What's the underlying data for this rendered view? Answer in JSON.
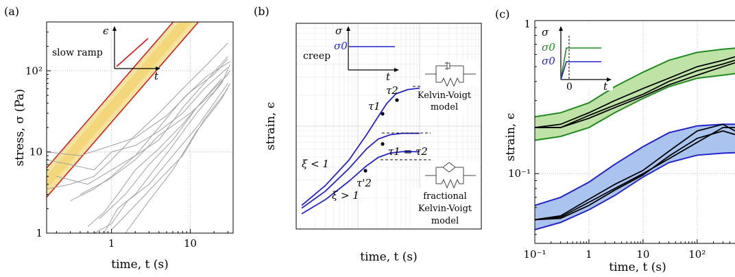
{
  "chart_data": [
    {
      "panel_label": "(a)",
      "type": "line",
      "xlabel": "time, t (s)",
      "ylabel": "stress, σ (Pa)",
      "x_scale": "log",
      "y_scale": "log",
      "xlim": [
        0.15,
        35
      ],
      "ylim": [
        1,
        400
      ],
      "x_ticks": [
        "1",
        "10"
      ],
      "y_ticks": [
        "1",
        "10",
        "10²"
      ],
      "grid": true,
      "inset": {
        "ylabel": "ϵ",
        "xlabel": "t",
        "caption": "slow ramp"
      },
      "colors": {
        "data": "#a0a0a0",
        "band_fill": "#f3d77a",
        "band_edge": "#cc2222"
      },
      "band": {
        "center_at_0_15": 4.2,
        "slope": 1.12,
        "width_factor": 1.23
      },
      "series": [
        {
          "x": [
            0.15,
            0.3,
            0.6,
            1,
            2,
            4,
            8,
            15,
            30
          ],
          "y": [
            8,
            7,
            6,
            10,
            12,
            18,
            30,
            60,
            110
          ]
        },
        {
          "x": [
            0.15,
            0.3,
            0.6,
            1,
            2,
            4,
            8,
            15,
            30
          ],
          "y": [
            3.5,
            4,
            5,
            8,
            16,
            30,
            60,
            110,
            220
          ]
        },
        {
          "x": [
            0.5,
            0.8,
            1.2,
            2,
            4,
            8,
            15,
            30
          ],
          "y": [
            1.2,
            1.8,
            3,
            6,
            11,
            22,
            45,
            90
          ]
        },
        {
          "x": [
            0.6,
            1,
            1.6,
            3,
            6,
            12,
            20,
            30
          ],
          "y": [
            1,
            1.3,
            2.5,
            4,
            9,
            20,
            40,
            70
          ]
        },
        {
          "x": [
            0.8,
            1.2,
            2,
            3,
            6,
            12,
            25,
            32
          ],
          "y": [
            1,
            2,
            3,
            5,
            12,
            30,
            70,
            120
          ]
        },
        {
          "x": [
            1,
            2,
            4,
            8,
            15,
            30
          ],
          "y": [
            1.1,
            2.2,
            4.5,
            9,
            25,
            60
          ]
        },
        {
          "x": [
            0.3,
            0.6,
            1,
            2,
            4,
            8,
            15,
            30
          ],
          "y": [
            2.5,
            3.5,
            5,
            9,
            14,
            35,
            70,
            150
          ]
        },
        {
          "x": [
            0.15,
            0.4,
            1,
            2,
            5,
            10,
            20,
            30
          ],
          "y": [
            10,
            9,
            12,
            15,
            28,
            55,
            90,
            140
          ]
        },
        {
          "x": [
            0.2,
            0.5,
            1,
            2,
            4,
            8,
            16,
            32
          ],
          "y": [
            5,
            4,
            6,
            9,
            20,
            45,
            85,
            130
          ]
        },
        {
          "x": [
            0.7,
            1.5,
            3,
            6,
            12,
            25
          ],
          "y": [
            1.5,
            3,
            7,
            14,
            35,
            80
          ]
        },
        {
          "x": [
            0.4,
            0.9,
            2,
            4,
            10,
            20,
            32
          ],
          "y": [
            3,
            4.5,
            8,
            16,
            30,
            55,
            100
          ]
        },
        {
          "x": [
            1.5,
            3,
            6,
            12,
            25,
            32
          ],
          "y": [
            1,
            2.5,
            6,
            18,
            45,
            70
          ]
        }
      ]
    },
    {
      "panel_label": "(b)",
      "type": "line",
      "xlabel": "time, t (s)",
      "ylabel": "strain, ϵ",
      "x_scale": "log",
      "y_scale": "log",
      "grid": true,
      "inset": {
        "ylabel": "σ",
        "level_label": "σ0",
        "xlabel": "t",
        "caption": "creep"
      },
      "model_labels": {
        "kelvin_voigt": [
          "Kelvin-Voigt",
          "model"
        ],
        "fractional": [
          "fractional",
          "Kelvin-Voigt",
          "model"
        ]
      },
      "annotations": {
        "tau1": "τ1",
        "tau2": "τ2",
        "tau_equal": "τ1 = τ2",
        "tau2_prime": "τ'2",
        "xi_less": "ξ < 1",
        "xi_greater": "ξ > 1"
      },
      "colors": {
        "curves": "#2222cc"
      },
      "curves": [
        {
          "label": "ξ < 1",
          "x": [
            0.0,
            0.2,
            0.4,
            0.55,
            0.65,
            0.72,
            0.8,
            0.9,
            1.0
          ],
          "y": [
            0.08,
            0.22,
            0.4,
            0.58,
            0.71,
            0.8,
            0.87,
            0.9,
            0.91
          ]
        },
        {
          "label": "τ1 = τ2",
          "x": [
            0.0,
            0.2,
            0.4,
            0.55,
            0.65,
            0.75,
            0.85,
            1.0
          ],
          "y": [
            0.06,
            0.18,
            0.34,
            0.48,
            0.55,
            0.58,
            0.59,
            0.59
          ]
        },
        {
          "label": "ξ > 1",
          "x": [
            0.0,
            0.2,
            0.4,
            0.55,
            0.65,
            0.75,
            0.85,
            1.0
          ],
          "y": [
            0.02,
            0.12,
            0.25,
            0.36,
            0.42,
            0.45,
            0.46,
            0.46
          ]
        }
      ]
    },
    {
      "panel_label": "(c)",
      "type": "line",
      "xlabel": "time, t (s)",
      "ylabel": "strain, ϵ",
      "x_scale": "log",
      "y_scale": "log",
      "xlim": [
        0.1,
        500
      ],
      "ylim": [
        0.035,
        1
      ],
      "x_ticks": [
        "10⁻¹",
        "1",
        "10",
        "10²"
      ],
      "y_ticks": [
        "10⁻¹",
        "1"
      ],
      "grid": true,
      "inset": {
        "ylabel": "σ",
        "green_label": "σ0",
        "blue_label": "σ0",
        "xlabel": "t",
        "origin": "0"
      },
      "colors": {
        "green_edge": "#1f8a1f",
        "green_fill": "#bfe3a6",
        "blue_edge": "#2222cc",
        "blue_fill": "#a9c4ee",
        "data": "#000000"
      },
      "green_band": {
        "x": [
          0.1,
          0.3,
          1,
          3,
          10,
          30,
          100,
          300,
          500
        ],
        "upper": [
          0.235,
          0.25,
          0.29,
          0.37,
          0.46,
          0.55,
          0.62,
          0.65,
          0.66
        ],
        "lower": [
          0.165,
          0.175,
          0.2,
          0.25,
          0.31,
          0.37,
          0.42,
          0.44,
          0.45
        ]
      },
      "blue_band": {
        "x": [
          0.1,
          0.3,
          1,
          3,
          10,
          30,
          100,
          300,
          500
        ],
        "upper": [
          0.062,
          0.07,
          0.088,
          0.115,
          0.15,
          0.185,
          0.205,
          0.21,
          0.21
        ],
        "lower": [
          0.043,
          0.048,
          0.058,
          0.072,
          0.095,
          0.118,
          0.132,
          0.136,
          0.137
        ]
      },
      "data_series": [
        {
          "x": [
            0.1,
            0.3,
            1,
            3,
            10,
            30,
            100,
            300,
            500
          ],
          "y": [
            0.2,
            0.2,
            0.24,
            0.28,
            0.33,
            0.4,
            0.47,
            0.52,
            0.55
          ]
        },
        {
          "x": [
            0.1,
            0.3,
            1,
            3,
            10,
            30,
            100,
            300,
            500
          ],
          "y": [
            0.2,
            0.21,
            0.25,
            0.3,
            0.36,
            0.42,
            0.5,
            0.55,
            0.58
          ]
        },
        {
          "x": [
            0.1,
            0.3,
            1,
            3,
            10,
            30,
            100,
            300,
            500
          ],
          "y": [
            0.2,
            0.2,
            0.23,
            0.27,
            0.32,
            0.38,
            0.44,
            0.5,
            0.53
          ]
        },
        {
          "x": [
            0.1,
            0.3,
            1,
            3,
            10,
            30,
            100,
            300,
            500
          ],
          "y": [
            0.05,
            0.052,
            0.065,
            0.08,
            0.1,
            0.125,
            0.16,
            0.2,
            0.2
          ]
        },
        {
          "x": [
            0.1,
            0.3,
            1,
            3,
            10,
            30,
            100,
            300,
            500
          ],
          "y": [
            0.05,
            0.053,
            0.068,
            0.085,
            0.105,
            0.14,
            0.19,
            0.21,
            0.19
          ]
        },
        {
          "x": [
            0.1,
            0.3,
            1,
            3,
            10,
            30,
            100,
            300,
            500
          ],
          "y": [
            0.05,
            0.051,
            0.062,
            0.078,
            0.098,
            0.13,
            0.17,
            0.19,
            0.18
          ]
        }
      ]
    }
  ]
}
